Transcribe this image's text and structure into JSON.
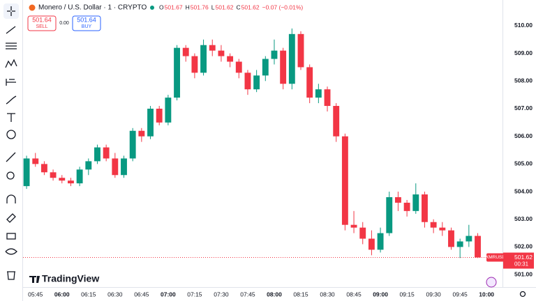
{
  "chart_data": {
    "type": "candlestick",
    "title": "Monero / U.S. Dollar · 1 · CRYPTO",
    "legend_items": [
      {
        "label": "O",
        "value": "501.67"
      },
      {
        "label": "H",
        "value": "501.76"
      },
      {
        "label": "L",
        "value": "501.62"
      },
      {
        "label": "C",
        "value": "501.62"
      }
    ],
    "change": "−0.07 (−0.01%)",
    "sell_price": "501.64",
    "sell_label": "SELL",
    "spread": "0.00",
    "buy_price": "501.64",
    "buy_label": "BUY",
    "symbol": "XMRUSD",
    "last_price": 501.62,
    "countdown": "00:31",
    "logo": "TradingView",
    "up_color": "#089981",
    "down_color": "#f23645",
    "grid": false,
    "x": [
      "05:40",
      "05:45",
      "05:50",
      "05:55",
      "06:00",
      "06:05",
      "06:10",
      "06:15",
      "06:20",
      "06:25",
      "06:30",
      "06:35",
      "06:40",
      "06:45",
      "06:50",
      "06:55",
      "07:00",
      "07:05",
      "07:10",
      "07:15",
      "07:20",
      "07:25",
      "07:30",
      "07:35",
      "07:40",
      "07:45",
      "07:50",
      "07:55",
      "08:00",
      "08:05",
      "08:10",
      "08:15",
      "08:20",
      "08:25",
      "08:30",
      "08:35",
      "08:40",
      "08:45",
      "08:50",
      "08:55",
      "09:00",
      "09:05",
      "09:10",
      "09:15",
      "09:20",
      "09:25",
      "09:30",
      "09:35",
      "09:40",
      "09:45",
      "09:50",
      "09:55"
    ],
    "open": [
      504.2,
      505.2,
      505.0,
      504.7,
      504.5,
      504.4,
      504.3,
      504.8,
      505.1,
      505.6,
      505.2,
      504.6,
      505.2,
      506.2,
      506.0,
      507.0,
      506.5,
      507.4,
      509.2,
      508.9,
      508.3,
      509.3,
      509.1,
      508.9,
      508.7,
      508.3,
      507.7,
      508.2,
      508.8,
      509.1,
      507.9,
      509.7,
      508.5,
      507.4,
      507.7,
      507.1,
      506.0,
      502.8,
      502.7,
      502.3,
      501.9,
      502.5,
      503.8,
      503.6,
      503.3,
      503.9,
      502.9,
      502.7,
      502.6,
      502.0,
      502.2,
      502.4
    ],
    "high": [
      505.3,
      505.4,
      505.1,
      504.8,
      504.6,
      504.5,
      504.9,
      505.2,
      505.7,
      505.7,
      505.4,
      505.3,
      506.3,
      506.3,
      507.1,
      507.1,
      507.5,
      509.3,
      509.3,
      509.0,
      509.5,
      509.5,
      509.3,
      509.0,
      508.8,
      508.4,
      508.4,
      508.9,
      509.5,
      509.2,
      509.9,
      509.8,
      508.6,
      507.9,
      507.8,
      507.2,
      506.1,
      503.3,
      502.9,
      502.6,
      502.7,
      504.0,
      504.0,
      503.7,
      504.3,
      504.0,
      503.0,
      502.9,
      502.7,
      502.3,
      502.8,
      502.5
    ],
    "low": [
      504.1,
      504.9,
      504.6,
      504.4,
      504.3,
      504.2,
      504.2,
      504.6,
      505.0,
      505.1,
      504.5,
      504.5,
      505.1,
      505.8,
      505.9,
      506.4,
      506.4,
      507.3,
      508.7,
      508.1,
      508.2,
      508.9,
      508.7,
      508.5,
      508.1,
      507.5,
      507.6,
      508.0,
      508.6,
      507.7,
      507.7,
      508.4,
      507.2,
      507.2,
      506.9,
      505.8,
      502.6,
      502.5,
      502.1,
      501.7,
      501.8,
      502.4,
      503.3,
      503.1,
      503.2,
      502.7,
      502.5,
      502.4,
      501.9,
      501.6,
      502.0,
      501.6
    ],
    "close": [
      505.2,
      505.0,
      504.7,
      504.5,
      504.4,
      504.3,
      504.8,
      505.1,
      505.6,
      505.2,
      504.6,
      505.2,
      506.2,
      506.0,
      507.0,
      506.5,
      507.4,
      509.2,
      508.9,
      508.3,
      509.3,
      509.1,
      508.9,
      508.7,
      508.3,
      507.7,
      508.2,
      508.8,
      509.1,
      507.9,
      509.7,
      508.5,
      507.4,
      507.7,
      507.1,
      506.0,
      502.8,
      502.7,
      502.3,
      501.9,
      502.5,
      503.8,
      503.6,
      503.3,
      503.9,
      502.9,
      502.7,
      502.6,
      502.0,
      502.2,
      502.4,
      501.62
    ],
    "xlim": [
      "05:38",
      "10:09"
    ],
    "xticks": [
      "05:45",
      "06:00",
      "06:15",
      "06:30",
      "06:45",
      "07:00",
      "07:15",
      "07:30",
      "07:45",
      "08:00",
      "08:15",
      "08:30",
      "08:45",
      "09:00",
      "09:15",
      "09:30",
      "09:45",
      "10:00"
    ],
    "ylim": [
      500.55,
      510.93
    ],
    "yticks": [
      {
        "value": 501,
        "label": "501.00"
      },
      {
        "value": 502,
        "label": "502.00"
      },
      {
        "value": 503,
        "label": "503.00"
      },
      {
        "value": 504,
        "label": "504.00"
      },
      {
        "value": 505,
        "label": "505.00"
      },
      {
        "value": 506,
        "label": "506.00"
      },
      {
        "value": 507,
        "label": "507.00"
      },
      {
        "value": 508,
        "label": "508.00"
      },
      {
        "value": 509,
        "label": "509.00"
      },
      {
        "value": 510,
        "label": "510.00"
      }
    ]
  }
}
